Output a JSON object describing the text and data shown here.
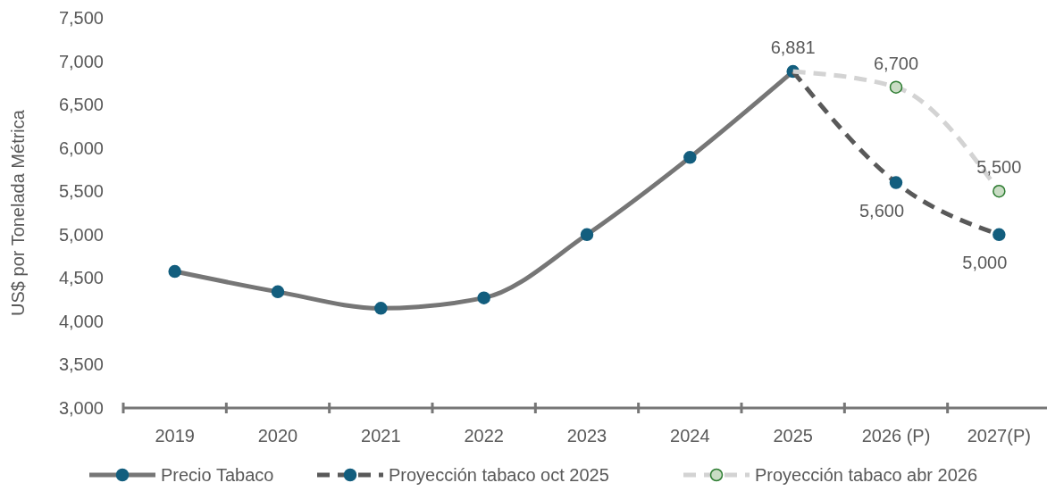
{
  "chart_data": {
    "type": "line",
    "ylabel": "US$ por Tonelada Métrica",
    "categories": [
      "2019",
      "2020",
      "2021",
      "2022",
      "2023",
      "2024",
      "2025",
      "2026 (P)",
      "2027(P)"
    ],
    "ylim": [
      3000,
      7500
    ],
    "yticks": [
      {
        "value": 3000,
        "label": "3,000"
      },
      {
        "value": 3500,
        "label": "3,500"
      },
      {
        "value": 4000,
        "label": "4,000"
      },
      {
        "value": 4500,
        "label": "4,500"
      },
      {
        "value": 5000,
        "label": "5,000"
      },
      {
        "value": 5500,
        "label": "5,500"
      },
      {
        "value": 6000,
        "label": "6,000"
      },
      {
        "value": 6500,
        "label": "6,500"
      },
      {
        "value": 7000,
        "label": "7,000"
      },
      {
        "value": 7500,
        "label": "7,500"
      }
    ],
    "grid": false,
    "legend": "bottom",
    "marker": "circle",
    "series": [
      {
        "name": "Precio Tabaco",
        "color": "#767676",
        "line_style": "solid",
        "values": [
          4575,
          4340,
          4150,
          4270,
          5000,
          5890,
          6881,
          null,
          null
        ]
      },
      {
        "name": "Proyección  tabaco oct 2025",
        "color": "#595959",
        "line_style": "dashed",
        "values": [
          null,
          null,
          null,
          null,
          null,
          null,
          6881,
          5600,
          5000
        ],
        "value_labels": [
          null,
          null,
          null,
          null,
          null,
          null,
          null,
          "5,600",
          "5,000"
        ]
      },
      {
        "name": "Proyección  tabaco abr 2026",
        "color": "#d3d3d3",
        "line_style": "dashed",
        "values": [
          null,
          null,
          null,
          null,
          null,
          null,
          6881,
          6700,
          5500
        ],
        "value_labels": [
          null,
          null,
          null,
          null,
          null,
          null,
          "6,881",
          "6,700",
          "5,500"
        ]
      }
    ]
  }
}
